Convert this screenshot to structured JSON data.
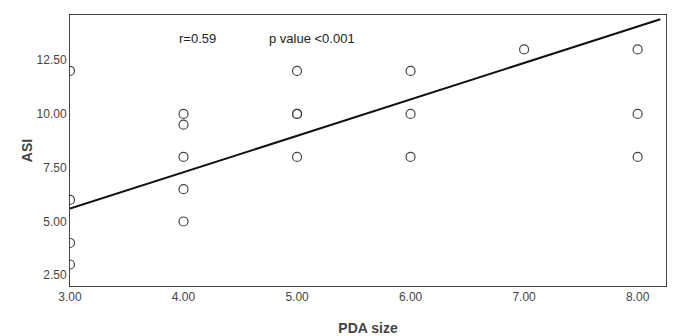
{
  "chart_data": {
    "type": "scatter",
    "x_label": "PDA size",
    "y_label": "ASI",
    "annotations": [
      "r=0.59",
      "p value <0.001"
    ],
    "series": [
      {
        "type": "scatter",
        "marker": "circle-open",
        "color": "#444444",
        "x": [
          3.0,
          3.0,
          3.0,
          3.0,
          4.0,
          4.0,
          4.0,
          4.0,
          4.0,
          5.0,
          5.0,
          5.0,
          5.0,
          6.0,
          6.0,
          6.0,
          7.0,
          8.0,
          8.0,
          8.0
        ],
        "values": [
          12.0,
          6.0,
          4.0,
          3.0,
          10.0,
          9.5,
          8.0,
          6.5,
          5.0,
          12.0,
          10.0,
          10.0,
          8.0,
          12.0,
          10.0,
          8.0,
          13.0,
          13.0,
          10.0,
          8.0
        ]
      },
      {
        "type": "line",
        "line_style": "solid",
        "color": "#111111",
        "x": [
          3.0,
          8.2
        ],
        "values": [
          5.6,
          14.4
        ]
      }
    ],
    "xlim": [
      3.0,
      8.25
    ],
    "ylim": [
      2.0,
      14.6
    ],
    "xticks": [
      {
        "value": 3.0,
        "label": "3.00"
      },
      {
        "value": 4.0,
        "label": "4.00"
      },
      {
        "value": 5.0,
        "label": "5.00"
      },
      {
        "value": 6.0,
        "label": "6.00"
      },
      {
        "value": 7.0,
        "label": "7.00"
      },
      {
        "value": 8.0,
        "label": "8.00"
      }
    ],
    "yticks": [
      {
        "value": 2.5,
        "label": "2.50"
      },
      {
        "value": 5.0,
        "label": "5.00"
      },
      {
        "value": 7.5,
        "label": "7.50"
      },
      {
        "value": 10.0,
        "label": "10.00"
      },
      {
        "value": 12.5,
        "label": "12.50"
      }
    ],
    "grid": false
  }
}
